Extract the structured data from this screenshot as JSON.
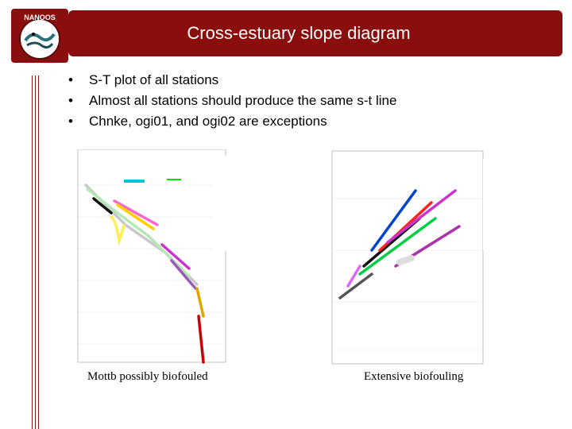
{
  "slide": {
    "title": "Cross-estuary slope diagram",
    "bullets": [
      "S-T plot of all stations",
      "Almost all stations should produce the same s-t line",
      "Chnke, ogi01, and ogi02 are exceptions"
    ],
    "logo": {
      "text": "NANOOS",
      "icon": "nanoos-logo"
    },
    "nav": {
      "icon": "return-arrow-icon"
    }
  },
  "colors": {
    "accent": "#8b0e0e",
    "text": "#000000",
    "background": "#ffffff"
  },
  "captions": {
    "left": "Mottb possibly biofouled",
    "right": "Extensive biofouling"
  }
}
